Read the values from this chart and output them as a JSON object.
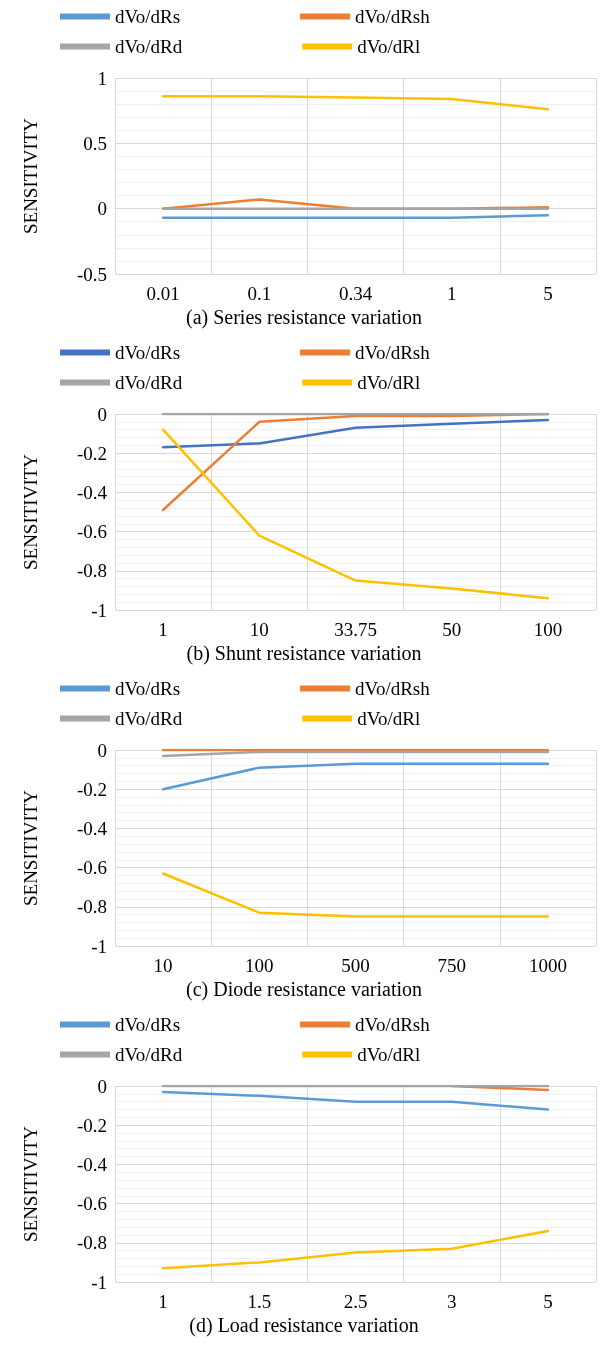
{
  "chart_data": [
    {
      "type": "line",
      "title": "(a) Series resistance variation",
      "ylabel": "SENSITIVITY",
      "categories": [
        "0.01",
        "0.1",
        "0.34",
        "1",
        "5"
      ],
      "ylim": [
        -0.5,
        1
      ],
      "yticks": [
        -0.5,
        0,
        0.5,
        1
      ],
      "grid": true,
      "legend": "top",
      "marker": "none",
      "series": [
        {
          "name": "dVo/dRs",
          "color": "#5b9bd5",
          "values": [
            -0.07,
            -0.07,
            -0.07,
            -0.07,
            -0.05
          ]
        },
        {
          "name": "dVo/dRsh",
          "color": "#ed7d31",
          "values": [
            0.0,
            0.07,
            0.0,
            0.0,
            0.01
          ]
        },
        {
          "name": "dVo/dRd",
          "color": "#a5a5a5",
          "values": [
            0,
            0,
            0,
            0,
            0
          ]
        },
        {
          "name": "dVo/dRl",
          "color": "#ffc000",
          "values": [
            0.86,
            0.86,
            0.85,
            0.84,
            0.76
          ]
        }
      ]
    },
    {
      "type": "line",
      "title": "(b) Shunt resistance variation",
      "ylabel": "SENSITIVITY",
      "categories": [
        "1",
        "10",
        "33.75",
        "50",
        "100"
      ],
      "ylim": [
        -1,
        0
      ],
      "yticks": [
        -1,
        -0.8,
        -0.6,
        -0.4,
        -0.2,
        0
      ],
      "grid": true,
      "legend": "top",
      "marker": "none",
      "series": [
        {
          "name": "dVo/dRs",
          "color": "#4472c4",
          "values": [
            -0.17,
            -0.15,
            -0.07,
            -0.05,
            -0.03
          ]
        },
        {
          "name": "dVo/dRsh",
          "color": "#ed7d31",
          "values": [
            -0.49,
            -0.04,
            -0.01,
            -0.01,
            0.0
          ]
        },
        {
          "name": "dVo/dRd",
          "color": "#a5a5a5",
          "values": [
            0,
            0,
            0,
            0,
            0
          ]
        },
        {
          "name": "dVo/dRl",
          "color": "#ffc000",
          "values": [
            -0.08,
            -0.62,
            -0.85,
            -0.89,
            -0.94
          ]
        }
      ]
    },
    {
      "type": "line",
      "title": "(c) Diode resistance variation",
      "ylabel": "SENSITIVITY",
      "categories": [
        "10",
        "100",
        "500",
        "750",
        "1000"
      ],
      "ylim": [
        -1,
        0
      ],
      "yticks": [
        -1,
        -0.8,
        -0.6,
        -0.4,
        -0.2,
        0
      ],
      "grid": true,
      "legend": "top",
      "marker": "none",
      "series": [
        {
          "name": "dVo/dRs",
          "color": "#5b9bd5",
          "values": [
            -0.2,
            -0.09,
            -0.07,
            -0.07,
            -0.07
          ]
        },
        {
          "name": "dVo/dRsh",
          "color": "#ed7d31",
          "values": [
            0,
            0,
            0,
            0,
            0
          ]
        },
        {
          "name": "dVo/dRd",
          "color": "#a5a5a5",
          "values": [
            -0.03,
            -0.01,
            -0.01,
            -0.01,
            -0.01
          ]
        },
        {
          "name": "dVo/dRl",
          "color": "#ffc000",
          "values": [
            -0.63,
            -0.83,
            -0.85,
            -0.85,
            -0.85
          ]
        }
      ]
    },
    {
      "type": "line",
      "title": "(d) Load resistance variation",
      "ylabel": "SENSITIVITY",
      "categories": [
        "1",
        "1.5",
        "2.5",
        "3",
        "5"
      ],
      "ylim": [
        -1,
        0
      ],
      "yticks": [
        -1,
        -0.8,
        -0.6,
        -0.4,
        -0.2,
        0
      ],
      "grid": true,
      "legend": "top",
      "marker": "none",
      "series": [
        {
          "name": "dVo/dRs",
          "color": "#5b9bd5",
          "values": [
            -0.03,
            -0.05,
            -0.08,
            -0.08,
            -0.12
          ]
        },
        {
          "name": "dVo/dRsh",
          "color": "#ed7d31",
          "values": [
            null,
            null,
            null,
            0,
            -0.02
          ]
        },
        {
          "name": "dVo/dRd",
          "color": "#a5a5a5",
          "values": [
            0,
            0,
            0,
            0,
            0
          ]
        },
        {
          "name": "dVo/dRl",
          "color": "#ffc000",
          "values": [
            -0.93,
            -0.9,
            -0.85,
            -0.83,
            -0.74
          ]
        }
      ]
    }
  ]
}
